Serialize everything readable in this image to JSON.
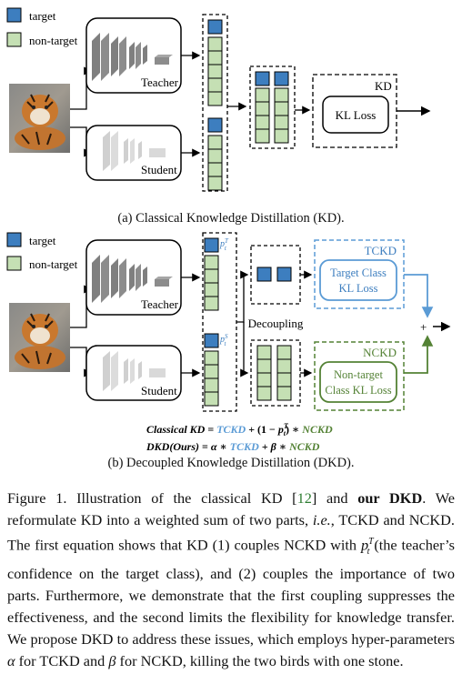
{
  "panel_a": {
    "legend_target": "target",
    "legend_non_target": "non-target",
    "teacher": "Teacher",
    "student": "Student",
    "kd": "KD",
    "kl_loss": "KL Loss",
    "caption": "(a) Classical Knowledge Distillation (KD)."
  },
  "panel_b": {
    "legend_target": "target",
    "legend_non_target": "non-target",
    "teacher": "Teacher",
    "student": "Student",
    "decoupling": "Decoupling",
    "tckd": "TCKD",
    "nckd": "NCKD",
    "tckd_loss_1": "Target Class",
    "tckd_loss_2": "KL Loss",
    "nckd_loss_1": "Non-target",
    "nckd_loss_2": "Class KL Loss",
    "p_teacher": "p",
    "p_teacher_sup": "T",
    "p_teacher_sub": "t",
    "p_student": "p",
    "p_student_sup": "S",
    "p_student_sub": "t",
    "plus": "+",
    "caption": "(b) Decoupled Knowledge Distillation (DKD)."
  },
  "equations": {
    "eq1_lhs": "Classical KD",
    "eq1_eq": " = ",
    "eq1_tckd": "TCKD",
    "eq1_plus": " + (1 − ",
    "eq1_p": "p",
    "eq1_psup": "T",
    "eq1_psub": "t",
    "eq1_close": ") ∗ ",
    "eq1_nckd": "NCKD",
    "eq2_lhs": "DKD(Ours)",
    "eq2_eq": " = ",
    "eq2_alpha": "α",
    "eq2_mul1": " ∗ ",
    "eq2_tckd": "TCKD",
    "eq2_plus": " + ",
    "eq2_beta": "β",
    "eq2_mul2": " ∗ ",
    "eq2_nckd": "NCKD"
  },
  "caption": {
    "t1": "Figure 1. Illustration of the classical KD [",
    "cite": "12",
    "t2": "] and ",
    "bold": "our DKD",
    "t3": ". We reformulate KD into a weighted sum of two parts, ",
    "ie": "i.e.",
    "t4": ", TCKD and NCKD. The first equation shows that KD (1) couples NCKD with ",
    "p": "p",
    "psup": "T",
    "psub": "t",
    "t5": " (the teacher’s confidence on the target class), and (2) couples the importance of two parts. Furthermore, we demonstrate that the first coupling suppresses the effectiveness, and the second limits the flexibility for knowledge transfer. We propose DKD to address these issues, which employs hyper-parameters ",
    "alpha": "α",
    "t6": " for TCKD and ",
    "beta": "β",
    "t7": " for NCKD, killing the two birds with one stone."
  },
  "colors": {
    "target_blue": "#3d7ebf",
    "non_target_green": "#c5e0b4",
    "tckd_blue": "#5b9bd5",
    "nckd_green": "#548235",
    "layer_dark": "#7f7f7f",
    "layer_light": "#d9d9d9"
  }
}
